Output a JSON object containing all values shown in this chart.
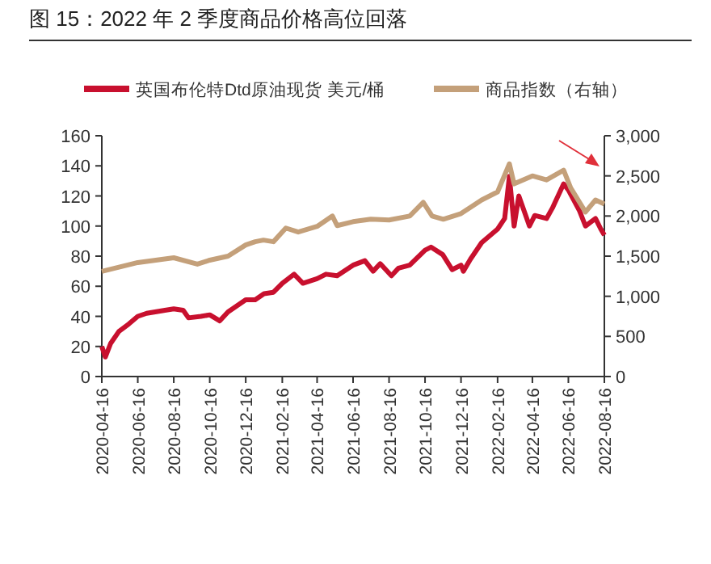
{
  "chart_data": {
    "type": "line",
    "title": "图 15：2022 年 2 季度商品价格高位回落",
    "xlim": [
      "2020-04-16",
      "2022-08-16"
    ],
    "xticks": [
      {
        "value": "2020-04-16",
        "label": "2020-04-16"
      },
      {
        "value": "2020-06-16",
        "label": "2020-06-16"
      },
      {
        "value": "2020-08-16",
        "label": "2020-08-16"
      },
      {
        "value": "2020-10-16",
        "label": "2020-10-16"
      },
      {
        "value": "2020-12-16",
        "label": "2020-12-16"
      },
      {
        "value": "2021-02-16",
        "label": "2021-02-16"
      },
      {
        "value": "2021-04-16",
        "label": "2021-04-16"
      },
      {
        "value": "2021-06-16",
        "label": "2021-06-16"
      },
      {
        "value": "2021-08-16",
        "label": "2021-08-16"
      },
      {
        "value": "2021-10-16",
        "label": "2021-10-16"
      },
      {
        "value": "2021-12-16",
        "label": "2021-12-16"
      },
      {
        "value": "2022-02-16",
        "label": "2022-02-16"
      },
      {
        "value": "2022-04-16",
        "label": "2022-04-16"
      },
      {
        "value": "2022-06-16",
        "label": "2022-06-16"
      },
      {
        "value": "2022-08-16",
        "label": "2022-08-16"
      }
    ],
    "ylim": [
      0,
      160
    ],
    "yticks": [
      0,
      20,
      40,
      60,
      80,
      100,
      120,
      140,
      160
    ],
    "y2lim": [
      0,
      3000
    ],
    "y2ticks": [
      0,
      {
        "value": 500,
        "label": "500"
      },
      {
        "value": 1000,
        "label": "1,000"
      },
      {
        "value": 1500,
        "label": "1,500"
      },
      {
        "value": 2000,
        "label": "2,000"
      },
      {
        "value": 2500,
        "label": "2,500"
      },
      {
        "value": 3000,
        "label": "3,000"
      }
    ],
    "legend": "top",
    "grid": false,
    "series": [
      {
        "name": "英国布伦特Dtd原油现货 美元/桶",
        "color": "#c8102e",
        "x": [
          "2020-04-16",
          "2020-04-22",
          "2020-05-01",
          "2020-05-15",
          "2020-06-01",
          "2020-06-16",
          "2020-07-01",
          "2020-08-01",
          "2020-08-16",
          "2020-09-01",
          "2020-09-10",
          "2020-10-01",
          "2020-10-16",
          "2020-11-02",
          "2020-11-16",
          "2020-12-01",
          "2020-12-16",
          "2021-01-01",
          "2021-01-16",
          "2021-02-01",
          "2021-02-16",
          "2021-03-08",
          "2021-03-23",
          "2021-04-16",
          "2021-05-01",
          "2021-05-20",
          "2021-06-16",
          "2021-07-06",
          "2021-07-20",
          "2021-08-01",
          "2021-08-20",
          "2021-09-01",
          "2021-09-20",
          "2021-10-16",
          "2021-10-26",
          "2021-11-15",
          "2021-12-01",
          "2021-12-16",
          "2021-12-20",
          "2022-01-01",
          "2022-01-20",
          "2022-02-16",
          "2022-02-28",
          "2022-03-08",
          "2022-03-16",
          "2022-03-24",
          "2022-04-11",
          "2022-04-20",
          "2022-05-10",
          "2022-05-20",
          "2022-06-08",
          "2022-06-16",
          "2022-07-05",
          "2022-07-15",
          "2022-08-01",
          "2022-08-10",
          "2022-08-16"
        ],
        "values": [
          20,
          13,
          22,
          30,
          35,
          40,
          42,
          44,
          45,
          44,
          39,
          40,
          41,
          37,
          43,
          47,
          51,
          51,
          55,
          56,
          62,
          68,
          62,
          65,
          68,
          67,
          74,
          77,
          70,
          75,
          67,
          72,
          74,
          84,
          86,
          81,
          71,
          74,
          70,
          78,
          89,
          98,
          105,
          133,
          100,
          120,
          100,
          107,
          105,
          112,
          128,
          124,
          110,
          100,
          105,
          98,
          94
        ]
      },
      {
        "name": "商品指数（右轴）",
        "color": "#c4a07a",
        "axis": "y2",
        "x": [
          "2020-04-16",
          "2020-06-16",
          "2020-08-16",
          "2020-09-25",
          "2020-10-16",
          "2020-11-16",
          "2020-12-16",
          "2021-01-01",
          "2021-01-15",
          "2021-02-01",
          "2021-02-22",
          "2021-03-15",
          "2021-04-16",
          "2021-05-12",
          "2021-05-20",
          "2021-06-16",
          "2021-07-16",
          "2021-08-16",
          "2021-09-20",
          "2021-10-13",
          "2021-10-28",
          "2021-11-16",
          "2021-12-16",
          "2022-01-20",
          "2022-02-16",
          "2022-03-08",
          "2022-03-16",
          "2022-04-16",
          "2022-05-10",
          "2022-06-08",
          "2022-06-20",
          "2022-07-15",
          "2022-08-01",
          "2022-08-16"
        ],
        "values": [
          1310,
          1420,
          1480,
          1400,
          1450,
          1500,
          1640,
          1680,
          1700,
          1680,
          1850,
          1800,
          1870,
          2000,
          1880,
          1930,
          1960,
          1950,
          2000,
          2170,
          2000,
          1960,
          2030,
          2200,
          2300,
          2650,
          2400,
          2500,
          2450,
          2570,
          2350,
          2050,
          2200,
          2150
        ]
      }
    ]
  }
}
